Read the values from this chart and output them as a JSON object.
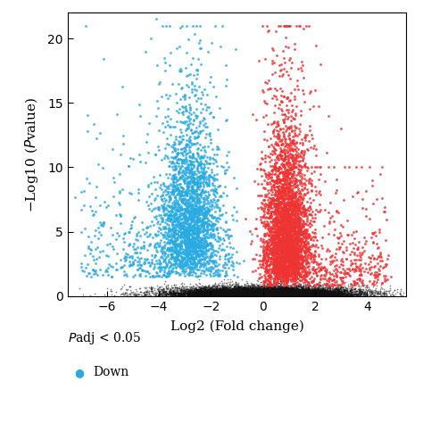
{
  "xlabel": "Log2 (Fold change)",
  "ylabel": "$-$Log10 ($\\it{P}$value)",
  "xlim": [
    -7.5,
    5.5
  ],
  "ylim": [
    0,
    22
  ],
  "xticks": [
    -6,
    -4,
    -2,
    0,
    2,
    4
  ],
  "yticks": [
    0,
    5,
    10,
    15,
    20
  ],
  "color_down": "#29ABE2",
  "color_up": "#EE3333",
  "color_ns": "#111111",
  "legend_title": "$\\it{P}$adj < 0.05",
  "legend_down": "Down",
  "seed": 42,
  "point_size_ns": 1.5,
  "point_size_sig": 4,
  "alpha_ns": 0.5,
  "alpha_sig": 0.85
}
